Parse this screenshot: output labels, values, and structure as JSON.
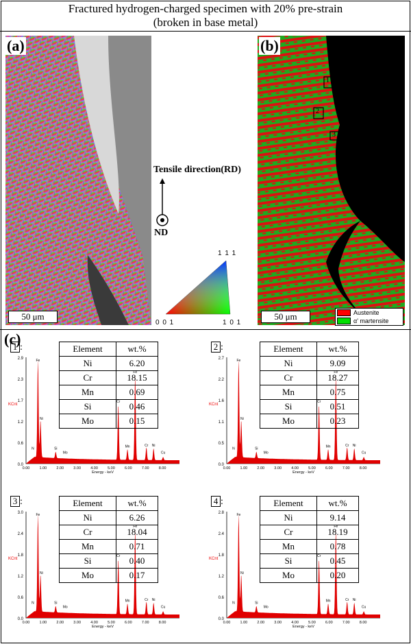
{
  "title_line1": "Fractured hydrogen-charged specimen with 20% pre-strain",
  "title_line2": "(broken in base metal)",
  "panels": {
    "a": "(a)",
    "b": "(b)",
    "c": "(c)"
  },
  "scale_bar": "50 μm",
  "direction": {
    "tensile": "Tensile direction(RD)",
    "nd": "ND"
  },
  "ipf": {
    "top": "1 1 1",
    "left": "0 0 1",
    "right": "1 0 1"
  },
  "legend": {
    "austenite": "Austenite",
    "martensite": "α' martensite",
    "austenite_color": "#ff0000",
    "martensite_color": "#00dd00"
  },
  "regions": [
    "1",
    "2",
    "3",
    "4"
  ],
  "eds": [
    {
      "label": "1",
      "header": [
        "Element",
        "wt.%"
      ],
      "rows": [
        [
          "Ni",
          "6.20"
        ],
        [
          "Cr",
          "18.15"
        ],
        [
          "Mn",
          "0.69"
        ],
        [
          "Si",
          "0.46"
        ],
        [
          "Mo",
          "0.15"
        ]
      ],
      "yticks": [
        "2.9",
        "2.3",
        "1.7",
        "1.2",
        "0.6",
        "0.0"
      ]
    },
    {
      "label": "2",
      "header": [
        "Element",
        "wt.%"
      ],
      "rows": [
        [
          "Ni",
          "9.09"
        ],
        [
          "Cr",
          "18.27"
        ],
        [
          "Mn",
          "0.75"
        ],
        [
          "Si",
          "0.51"
        ],
        [
          "Mo",
          "0.23"
        ]
      ],
      "yticks": [
        "2.7",
        "2.2",
        "1.6",
        "1.1",
        "0.5",
        "0.0"
      ]
    },
    {
      "label": "3",
      "header": [
        "Element",
        "wt.%"
      ],
      "rows": [
        [
          "Ni",
          "6.26"
        ],
        [
          "Cr",
          "18.04"
        ],
        [
          "Mn",
          "0.71"
        ],
        [
          "Si",
          "0.40"
        ],
        [
          "Mo",
          "0.17"
        ]
      ],
      "yticks": [
        "3.0",
        "2.4",
        "1.8",
        "1.2",
        "0.6",
        "0.0"
      ]
    },
    {
      "label": "4",
      "header": [
        "Element",
        "wt.%"
      ],
      "rows": [
        [
          "Ni",
          "9.14"
        ],
        [
          "Cr",
          "18.19"
        ],
        [
          "Mn",
          "0.78"
        ],
        [
          "Si",
          "0.45"
        ],
        [
          "Mo",
          "0.20"
        ]
      ],
      "yticks": [
        "2.8",
        "2.4",
        "1.8",
        "1.2",
        "0.6",
        "0.0"
      ]
    }
  ],
  "spectrum_axis": {
    "ylabel": "KCnt",
    "xlabel": "Energy - keV",
    "xticks": [
      "0.00",
      "1.00",
      "2.00",
      "3.00",
      "4.00",
      "5.00",
      "6.00",
      "7.00",
      "8.00"
    ],
    "peaks": [
      "Fe",
      "Ni",
      "N",
      "Si",
      "Mo",
      "Cr",
      "Fe",
      "Mn",
      "Cr",
      "Ni",
      "Cu"
    ]
  }
}
